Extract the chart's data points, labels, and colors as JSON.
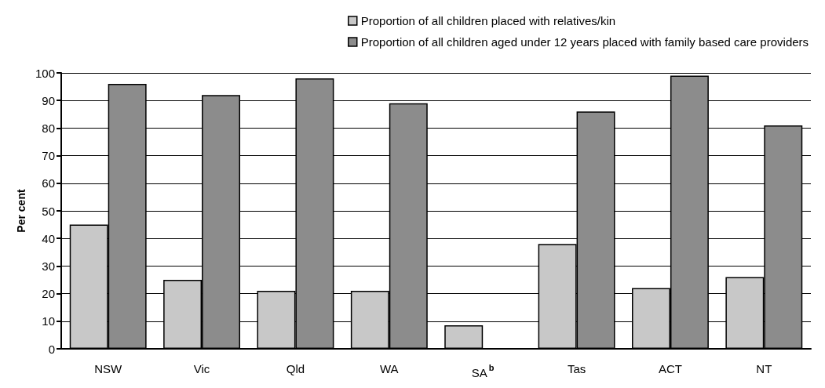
{
  "chart_data": {
    "type": "bar",
    "ylabel": "Per cent",
    "categories": [
      "NSW",
      "Vic",
      "Qld",
      "WA",
      "SA$^{b}$",
      "Tas",
      "ACT",
      "NT"
    ],
    "series": [
      {
        "name": "Proportion of all children placed with relatives/kin",
        "color": "#c8c8c8",
        "values": [
          45,
          25,
          21,
          21,
          8.5,
          38,
          22,
          26
        ]
      },
      {
        "name": "Proportion of all children aged under 12 years placed with family based care providers",
        "color": "#8c8c8c",
        "values": [
          96,
          92,
          98,
          89,
          null,
          86,
          99,
          81
        ]
      }
    ],
    "ylim": [
      0,
      100
    ],
    "yticks": [
      0,
      10,
      20,
      30,
      40,
      50,
      60,
      70,
      80,
      90,
      100
    ],
    "grid": "y",
    "legend": "top"
  }
}
